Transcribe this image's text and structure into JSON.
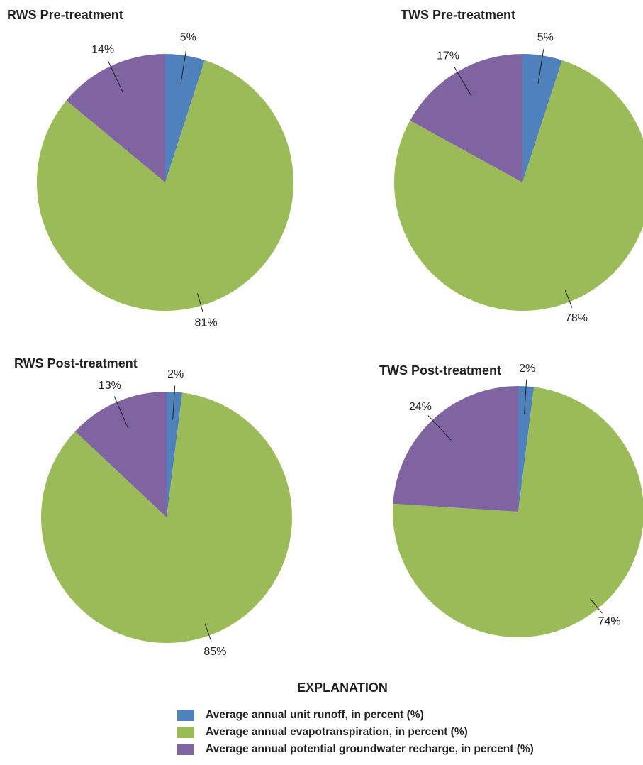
{
  "chart_data": [
    {
      "type": "pie",
      "title": "RWS Pre-treatment",
      "values": [
        5,
        81,
        14
      ],
      "value_labels": [
        "5%",
        "81%",
        "14%"
      ]
    },
    {
      "type": "pie",
      "title": "TWS Pre-treatment",
      "values": [
        5,
        78,
        17
      ],
      "value_labels": [
        "5%",
        "78%",
        "17%"
      ]
    },
    {
      "type": "pie",
      "title": "RWS Post-treatment",
      "values": [
        2,
        85,
        13
      ],
      "value_labels": [
        "2%",
        "85%",
        "13%"
      ]
    },
    {
      "type": "pie",
      "title": "TWS Post-treatment",
      "values": [
        2,
        74,
        24
      ],
      "value_labels": [
        "2%",
        "74%",
        "24%"
      ]
    }
  ],
  "legend": {
    "title": "EXPLANATION",
    "labels": [
      "Average annual unit runoff, in percent (%)",
      "Average annual evapotranspiration, in percent (%)",
      "Average annual potential groundwater recharge, in percent (%)"
    ],
    "colors": [
      "#4f81bd",
      "#9bbb59",
      "#8064a2"
    ]
  }
}
